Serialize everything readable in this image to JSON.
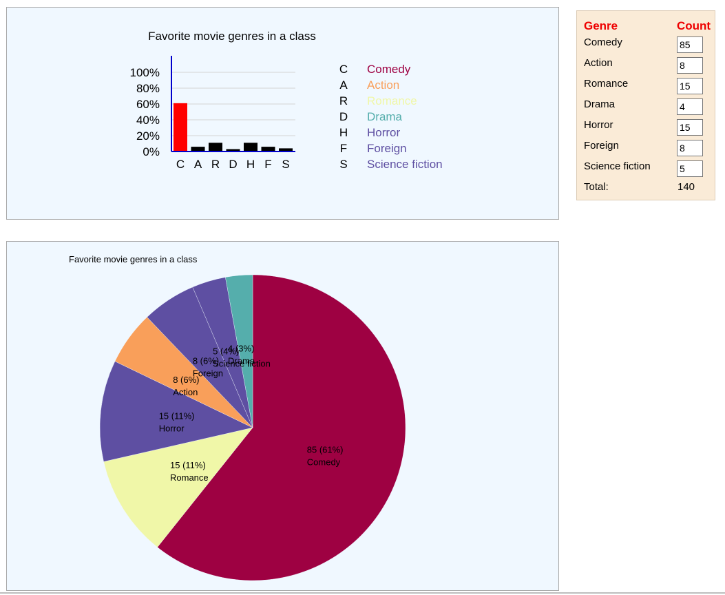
{
  "chart_data": [
    {
      "type": "bar",
      "title": "Favorite movie genres in a class",
      "categories": [
        "C",
        "A",
        "R",
        "D",
        "H",
        "F",
        "S"
      ],
      "values": [
        61,
        6,
        11,
        3,
        11,
        6,
        4
      ],
      "ylim": [
        0,
        100
      ],
      "yticks": [
        "100%",
        "80%",
        "60%",
        "40%",
        "20%",
        "0%"
      ],
      "bar_colors": [
        "#ff0000",
        "#000000",
        "#000000",
        "#000000",
        "#000000",
        "#000000",
        "#000000"
      ],
      "legend": [
        {
          "key": "C",
          "label": "Comedy",
          "color": "#9e0142"
        },
        {
          "key": "A",
          "label": "Action",
          "color": "#f99f5a"
        },
        {
          "key": "R",
          "label": "Romance",
          "color": "#f0f7a8"
        },
        {
          "key": "D",
          "label": "Drama",
          "color": "#55aeac"
        },
        {
          "key": "H",
          "label": "Horror",
          "color": "#5e4fa2"
        },
        {
          "key": "F",
          "label": "Foreign",
          "color": "#5e4fa2"
        },
        {
          "key": "S",
          "label": "Science fiction",
          "color": "#5e4fa2"
        }
      ],
      "grid": true
    },
    {
      "type": "pie",
      "title": "Favorite movie genres in a class",
      "slices": [
        {
          "label": "Comedy",
          "value": 85,
          "text": "85 (61%)",
          "color": "#9e0142"
        },
        {
          "label": "Romance",
          "value": 15,
          "text": "15 (11%)",
          "color": "#f0f7a8"
        },
        {
          "label": "Horror",
          "value": 15,
          "text": "15 (11%)",
          "color": "#5e4fa2"
        },
        {
          "label": "Action",
          "value": 8,
          "text": "8 (6%)",
          "color": "#f99f5a"
        },
        {
          "label": "Foreign",
          "value": 8,
          "text": "8 (6%)",
          "color": "#5e4fa2"
        },
        {
          "label": "Science fiction",
          "value": 5,
          "text": "5 (4%)",
          "color": "#5e4fa2"
        },
        {
          "label": "Drama",
          "value": 4,
          "text": "4 (3%)",
          "color": "#55aeac"
        }
      ]
    }
  ],
  "table": {
    "genre_header": "Genre",
    "count_header": "Count",
    "rows": [
      {
        "label": "Comedy",
        "value": "85"
      },
      {
        "label": "Action",
        "value": "8"
      },
      {
        "label": "Romance",
        "value": "15"
      },
      {
        "label": "Drama",
        "value": "4"
      },
      {
        "label": "Horror",
        "value": "15"
      },
      {
        "label": "Foreign",
        "value": "8"
      },
      {
        "label": "Science fiction",
        "value": "5"
      }
    ],
    "total_label": "Total:",
    "total_value": "140"
  }
}
